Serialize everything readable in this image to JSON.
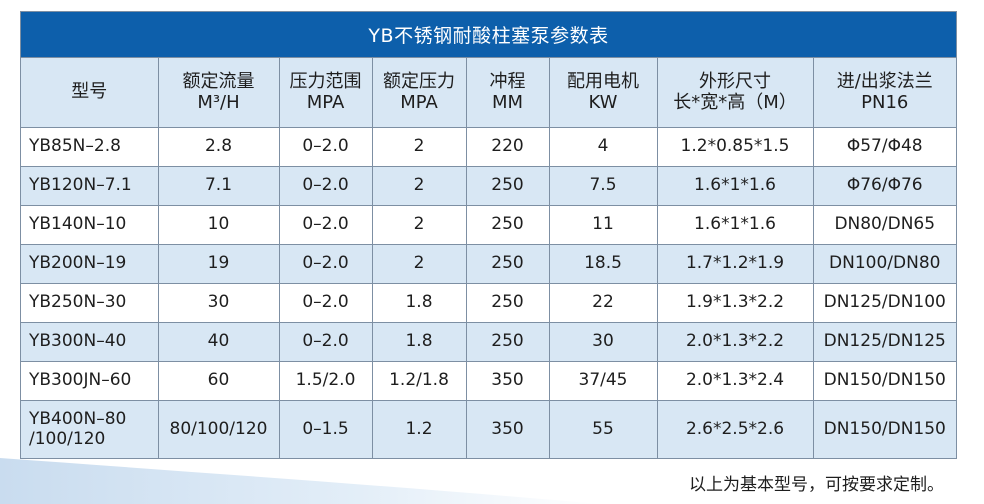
{
  "table": {
    "title": "YB不锈钢耐酸柱塞泵参数表",
    "headers": [
      {
        "key": "model",
        "lines": [
          "型号"
        ]
      },
      {
        "key": "flow",
        "lines": [
          "额定流量",
          "M³/H"
        ]
      },
      {
        "key": "pressure_range",
        "lines": [
          "压力范围",
          "MPA"
        ]
      },
      {
        "key": "rated_pressure",
        "lines": [
          "额定压力",
          "MPA"
        ]
      },
      {
        "key": "stroke",
        "lines": [
          "冲程",
          "MM"
        ]
      },
      {
        "key": "motor",
        "lines": [
          "配用电机",
          "KW"
        ]
      },
      {
        "key": "dimensions",
        "lines": [
          "外形尺寸",
          "长*宽*高（M）"
        ]
      },
      {
        "key": "flange",
        "lines": [
          "进/出浆法兰",
          "PN16"
        ]
      }
    ],
    "rows": [
      [
        "YB85N–2.8",
        "2.8",
        "0–2.0",
        "2",
        "220",
        "4",
        "1.2*0.85*1.5",
        "Φ57/Φ48"
      ],
      [
        "YB120N–7.1",
        "7.1",
        "0–2.0",
        "2",
        "250",
        "7.5",
        "1.6*1*1.6",
        "Φ76/Φ76"
      ],
      [
        "YB140N–10",
        "10",
        "0–2.0",
        "2",
        "250",
        "11",
        "1.6*1*1.6",
        "DN80/DN65"
      ],
      [
        "YB200N–19",
        "19",
        "0–2.0",
        "2",
        "250",
        "18.5",
        "1.7*1.2*1.9",
        "DN100/DN80"
      ],
      [
        "YB250N–30",
        "30",
        "0–2.0",
        "1.8",
        "250",
        "22",
        "1.9*1.3*2.2",
        "DN125/DN100"
      ],
      [
        "YB300N–40",
        "40",
        "0–2.0",
        "1.8",
        "250",
        "30",
        "2.0*1.3*2.2",
        "DN125/DN125"
      ],
      [
        "YB300JN–60",
        "60",
        "1.5/2.0",
        "1.2/1.8",
        "350",
        "37/45",
        "2.0*1.3*2.4",
        "DN150/DN150"
      ],
      [
        "YB400N–80\n/100/120",
        "80/100/120",
        "0–1.5",
        "1.2",
        "350",
        "55",
        "2.6*2.5*2.6",
        "DN150/DN150"
      ]
    ]
  },
  "footnote": "以上为基本型号，可按要求定制。",
  "colors": {
    "title_bar": "#0d5fab",
    "header_bg": "#d8e7f4",
    "stripe_bg": "#d8e7f4",
    "border": "#7d8fa3"
  }
}
